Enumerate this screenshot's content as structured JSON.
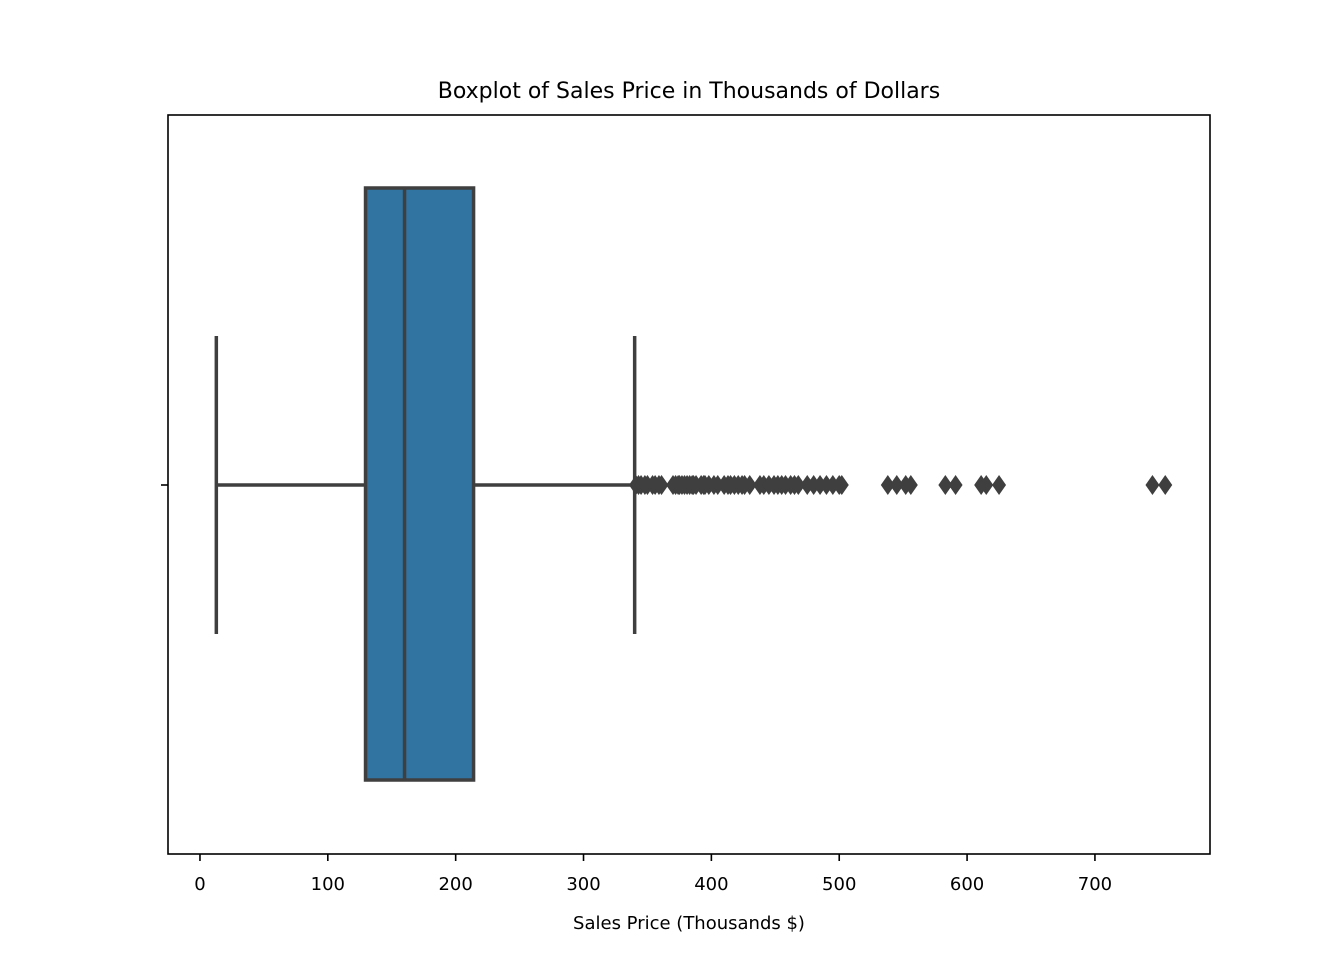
{
  "chart_data": {
    "type": "boxplot",
    "title": "Boxplot of Sales Price in Thousands of Dollars",
    "xlabel": "Sales Price (Thousands $)",
    "ylabel": "",
    "orientation": "horizontal",
    "xlim": [
      -25,
      790
    ],
    "xticks": [
      0,
      100,
      200,
      300,
      400,
      500,
      600,
      700
    ],
    "grid": false,
    "box": {
      "whisker_low": 12.8,
      "q1": 129.5,
      "median": 160.0,
      "q3": 214.0,
      "whisker_high": 340.0
    },
    "outliers": [
      341,
      343,
      345,
      348,
      350,
      354,
      356,
      359,
      361,
      370,
      372,
      374,
      375,
      377,
      379,
      381,
      383,
      385,
      386,
      388,
      392,
      394,
      395,
      398,
      402,
      405,
      410,
      413,
      415,
      418,
      421,
      424,
      426,
      430,
      438,
      441,
      445,
      449,
      452,
      455,
      458,
      462,
      465,
      468,
      475,
      480,
      485,
      490,
      495,
      500,
      502,
      538,
      545,
      552,
      556,
      583,
      591,
      611,
      615,
      625,
      745,
      755
    ],
    "colors": {
      "box_fill": "#3274a1",
      "line": "#3f3f3f",
      "axes": "#000000"
    }
  }
}
